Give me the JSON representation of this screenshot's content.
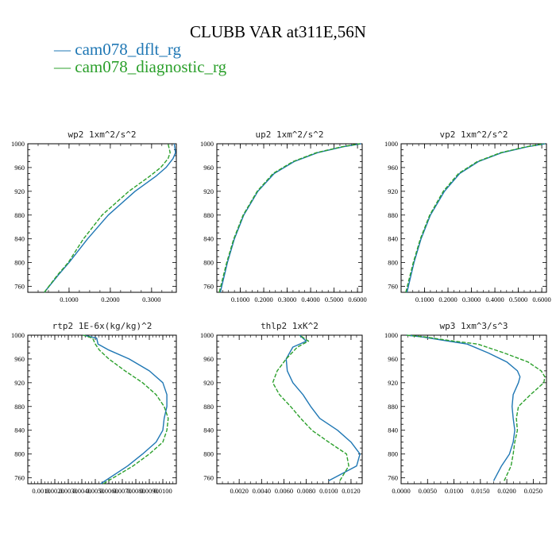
{
  "title": "CLUBB VAR at311E,56N",
  "legend": [
    {
      "label": "— cam078_dflt_rg",
      "color": "#1f77b4",
      "dash": "solid"
    },
    {
      "label": "— cam078_diagnostic_rg",
      "color": "#2ca02c",
      "dash": "dashed"
    }
  ],
  "chart_data": [
    {
      "type": "line",
      "title": "wp2  1xm^2/s^2",
      "xlim": [
        0,
        0.36
      ],
      "ylim": [
        1000,
        750
      ],
      "xticks": [
        0.1,
        0.2,
        0.3
      ],
      "xticklabels": [
        "0.1000",
        "0.2000",
        "0.3000"
      ],
      "yticks": [
        760,
        800,
        840,
        880,
        920,
        960,
        1000
      ],
      "yticklabels": [
        "760",
        "800",
        "840",
        "880",
        "920",
        "960",
        "1000"
      ],
      "series": [
        {
          "name": "cam078_dflt_rg",
          "y": [
            750,
            780,
            800,
            840,
            880,
            920,
            945,
            960,
            975,
            985,
            1000
          ],
          "x": [
            0.04,
            0.075,
            0.1,
            0.145,
            0.195,
            0.26,
            0.31,
            0.335,
            0.352,
            0.358,
            0.355
          ]
        },
        {
          "name": "cam078_diagnostic_rg",
          "y": [
            750,
            780,
            800,
            840,
            880,
            920,
            945,
            960,
            975,
            985,
            1000
          ],
          "x": [
            0.04,
            0.073,
            0.098,
            0.135,
            0.18,
            0.245,
            0.295,
            0.322,
            0.34,
            0.345,
            0.34
          ]
        }
      ]
    },
    {
      "type": "line",
      "title": "up2  1xm^2/s^2",
      "xlim": [
        0,
        0.62
      ],
      "ylim": [
        1000,
        750
      ],
      "xticks": [
        0.1,
        0.2,
        0.3,
        0.4,
        0.5,
        0.6
      ],
      "xticklabels": [
        "0.1000",
        "0.2000",
        "0.3000",
        "0.4000",
        "0.5000",
        "0.6000"
      ],
      "yticks": [
        760,
        800,
        840,
        880,
        920,
        960,
        1000
      ],
      "yticklabels": [
        "760",
        "800",
        "840",
        "880",
        "920",
        "960",
        "1000"
      ],
      "series": [
        {
          "name": "cam078_dflt_rg",
          "y": [
            750,
            800,
            840,
            880,
            920,
            950,
            970,
            985,
            995,
            1000
          ],
          "x": [
            0.015,
            0.045,
            0.075,
            0.115,
            0.175,
            0.245,
            0.33,
            0.43,
            0.54,
            0.615
          ]
        },
        {
          "name": "cam078_diagnostic_rg",
          "y": [
            750,
            800,
            840,
            880,
            920,
            950,
            970,
            985,
            995,
            1000
          ],
          "x": [
            0.01,
            0.042,
            0.072,
            0.112,
            0.172,
            0.24,
            0.325,
            0.425,
            0.535,
            0.61
          ]
        }
      ]
    },
    {
      "type": "line",
      "title": "vp2  1xm^2/s^2",
      "xlim": [
        0,
        0.62
      ],
      "ylim": [
        1000,
        750
      ],
      "xticks": [
        0.1,
        0.2,
        0.3,
        0.4,
        0.5,
        0.6
      ],
      "xticklabels": [
        "0.1000",
        "0.2000",
        "0.3000",
        "0.4000",
        "0.5000",
        "0.6000"
      ],
      "yticks": [
        760,
        800,
        840,
        880,
        920,
        960,
        1000
      ],
      "yticklabels": [
        "760",
        "800",
        "840",
        "880",
        "920",
        "960",
        "1000"
      ],
      "series": [
        {
          "name": "cam078_dflt_rg",
          "y": [
            750,
            800,
            840,
            880,
            920,
            950,
            970,
            985,
            995,
            1000
          ],
          "x": [
            0.025,
            0.055,
            0.085,
            0.125,
            0.185,
            0.25,
            0.33,
            0.43,
            0.54,
            0.615
          ]
        },
        {
          "name": "cam078_diagnostic_rg",
          "y": [
            750,
            800,
            840,
            880,
            920,
            950,
            970,
            985,
            995,
            1000
          ],
          "x": [
            0.02,
            0.052,
            0.082,
            0.122,
            0.18,
            0.245,
            0.325,
            0.425,
            0.535,
            0.61
          ]
        }
      ]
    },
    {
      "type": "line",
      "title": "rtp2  1E-6x(kg/kg)^2",
      "xlim": [
        0,
        11
      ],
      "ylim": [
        1000,
        750
      ],
      "xticks": [
        1,
        2,
        3,
        4,
        5,
        6,
        7,
        8,
        9,
        10
      ],
      "xticklabels": [
        "0.0010",
        "0.0020",
        "0.0030",
        "0.0040",
        "0.0050",
        "0.0060",
        "0.0070",
        "0.0080",
        "0.0090",
        "0.0100"
      ],
      "yticks": [
        760,
        800,
        840,
        880,
        920,
        960,
        1000
      ],
      "yticklabels": [
        "760",
        "800",
        "840",
        "880",
        "920",
        "960",
        "1000"
      ],
      "series": [
        {
          "name": "cam078_dflt_rg",
          "y": [
            750,
            780,
            800,
            820,
            840,
            860,
            880,
            900,
            920,
            940,
            960,
            975,
            985,
            995,
            1000
          ],
          "x": [
            5.4,
            7.4,
            8.5,
            9.5,
            10.0,
            10.1,
            10.3,
            10.3,
            10.0,
            9.0,
            7.5,
            6.0,
            5.2,
            5.1,
            4.1
          ]
        },
        {
          "name": "cam078_diagnostic_rg",
          "y": [
            750,
            780,
            800,
            820,
            840,
            860,
            880,
            900,
            920,
            940,
            960,
            975,
            985,
            995,
            1000
          ],
          "x": [
            5.6,
            7.8,
            9.0,
            10.0,
            10.3,
            10.4,
            10.1,
            9.5,
            8.5,
            7.2,
            6.0,
            5.3,
            5.0,
            4.8,
            4.1
          ]
        }
      ]
    },
    {
      "type": "line",
      "title": "thlp2  1xK^2",
      "xlim": [
        0,
        0.013
      ],
      "ylim": [
        1000,
        750
      ],
      "xticks": [
        0.002,
        0.004,
        0.006,
        0.008,
        0.01,
        0.012
      ],
      "xticklabels": [
        "0.0020",
        "0.0040",
        "0.0060",
        "0.0080",
        "0.0100",
        "0.0120"
      ],
      "yticks": [
        760,
        800,
        840,
        880,
        920,
        960,
        1000
      ],
      "yticklabels": [
        "760",
        "800",
        "840",
        "880",
        "920",
        "960",
        "1000"
      ],
      "series": [
        {
          "name": "cam078_dflt_rg",
          "y": [
            755,
            780,
            800,
            820,
            840,
            860,
            880,
            900,
            920,
            940,
            960,
            980,
            990,
            1000
          ],
          "x": [
            0.01,
            0.0125,
            0.0128,
            0.012,
            0.0108,
            0.0092,
            0.0084,
            0.0077,
            0.0068,
            0.0063,
            0.0062,
            0.0068,
            0.008,
            0.0074
          ]
        },
        {
          "name": "cam078_diagnostic_rg",
          "y": [
            755,
            780,
            800,
            820,
            840,
            860,
            880,
            900,
            920,
            940,
            960,
            980,
            990,
            1000
          ],
          "x": [
            0.011,
            0.0118,
            0.0116,
            0.01,
            0.0085,
            0.0075,
            0.0066,
            0.0056,
            0.005,
            0.0054,
            0.0062,
            0.0072,
            0.0082,
            0.0074
          ]
        }
      ]
    },
    {
      "type": "line",
      "title": "wp3  1xm^3/s^3",
      "xlim": [
        0,
        0.0275
      ],
      "ylim": [
        1000,
        750
      ],
      "xticks": [
        0,
        0.005,
        0.01,
        0.015,
        0.02,
        0.025
      ],
      "xticklabels": [
        "0.0000",
        "0.0050",
        "0.0100",
        "0.0150",
        "0.0200",
        "0.0250"
      ],
      "yticks": [
        760,
        800,
        840,
        880,
        920,
        960,
        1000
      ],
      "yticklabels": [
        "760",
        "800",
        "840",
        "880",
        "920",
        "960",
        "1000"
      ],
      "series": [
        {
          "name": "cam078_dflt_rg",
          "y": [
            755,
            780,
            800,
            820,
            840,
            860,
            880,
            900,
            920,
            930,
            940,
            955,
            970,
            985,
            990,
            997,
            1000
          ],
          "x": [
            0.0175,
            0.019,
            0.0205,
            0.0212,
            0.0215,
            0.0212,
            0.021,
            0.0212,
            0.0222,
            0.0225,
            0.022,
            0.02,
            0.0165,
            0.0125,
            0.009,
            0.004,
            0.001
          ]
        },
        {
          "name": "cam078_diagnostic_rg",
          "y": [
            755,
            780,
            800,
            820,
            840,
            860,
            880,
            900,
            920,
            930,
            940,
            955,
            970,
            985,
            990,
            997,
            1000
          ],
          "x": [
            0.0195,
            0.0208,
            0.0212,
            0.0215,
            0.022,
            0.0218,
            0.0222,
            0.0245,
            0.027,
            0.0272,
            0.0265,
            0.024,
            0.0195,
            0.0145,
            0.01,
            0.0045,
            0.001
          ]
        }
      ]
    }
  ]
}
